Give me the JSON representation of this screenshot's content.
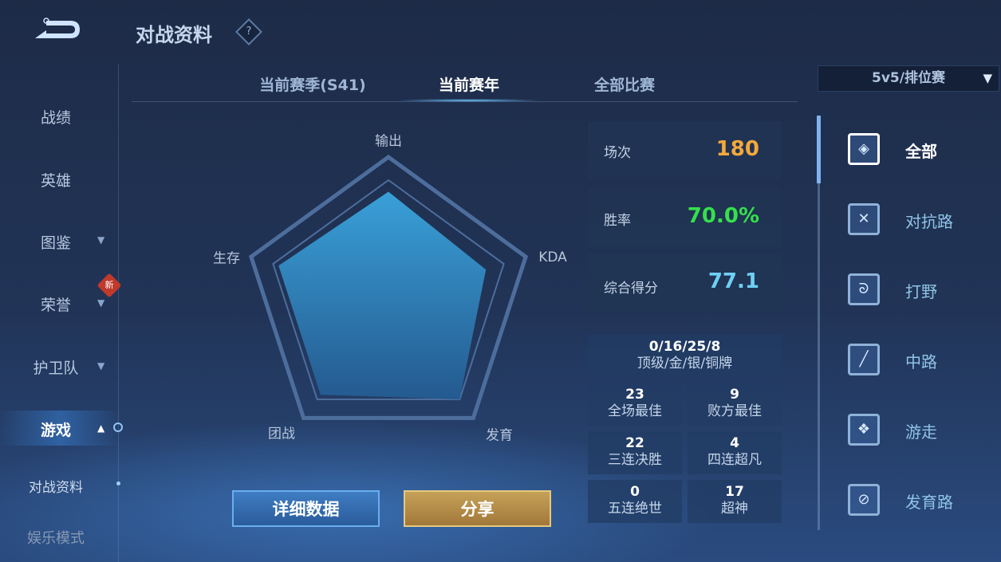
{
  "header": {
    "title": "对战资料",
    "help_icon": "question-diamond-icon",
    "back_icon": "back-arrow-icon"
  },
  "sidebar": {
    "items": [
      {
        "label": "战绩"
      },
      {
        "label": "英雄"
      },
      {
        "label": "图鉴",
        "chevron": "down"
      },
      {
        "label": "荣誉",
        "chevron": "down",
        "badge": "新"
      },
      {
        "label": "护卫队",
        "chevron": "down"
      },
      {
        "label": "游戏",
        "chevron": "up",
        "active": true
      },
      {
        "label": "对战资料",
        "sub": true
      },
      {
        "label": "娱乐模式"
      }
    ]
  },
  "tabs": [
    {
      "label": "当前赛季(S41)"
    },
    {
      "label": "当前赛年",
      "active": true
    },
    {
      "label": "全部比赛"
    }
  ],
  "mode_select": {
    "value": "5v5/排位赛",
    "icon": "filter-icon"
  },
  "chart_data": {
    "type": "radar",
    "categories": [
      "输出",
      "KDA",
      "发育",
      "团战",
      "生存"
    ],
    "values": [
      76,
      71,
      84,
      80,
      80
    ],
    "range": [
      0,
      100
    ]
  },
  "stats": {
    "matches": {
      "label": "场次",
      "value": "180",
      "color": "#f4a93b"
    },
    "win_rate": {
      "label": "胜率",
      "value": "70.0%",
      "color": "#35e04a"
    },
    "score": {
      "label": "综合得分",
      "value": "77.1",
      "color": "#6fd0f5"
    },
    "medals": {
      "value": "0/16/25/8",
      "label": "顶级/金/银/铜牌"
    },
    "grid": [
      {
        "value": "23",
        "label": "全场最佳"
      },
      {
        "value": "9",
        "label": "败方最佳"
      },
      {
        "value": "22",
        "label": "三连决胜"
      },
      {
        "value": "4",
        "label": "四连超凡"
      },
      {
        "value": "0",
        "label": "五连绝世"
      },
      {
        "value": "17",
        "label": "超神"
      }
    ]
  },
  "buttons": {
    "detail": "详细数据",
    "share": "分享"
  },
  "positions": [
    {
      "label": "全部",
      "icon": "all-positions-icon",
      "active": true
    },
    {
      "label": "对抗路",
      "icon": "crossed-swords-icon"
    },
    {
      "label": "打野",
      "icon": "dragon-icon"
    },
    {
      "label": "中路",
      "icon": "mid-lane-icon"
    },
    {
      "label": "游走",
      "icon": "wings-icon"
    },
    {
      "label": "发育路",
      "icon": "bottom-lane-icon"
    }
  ]
}
